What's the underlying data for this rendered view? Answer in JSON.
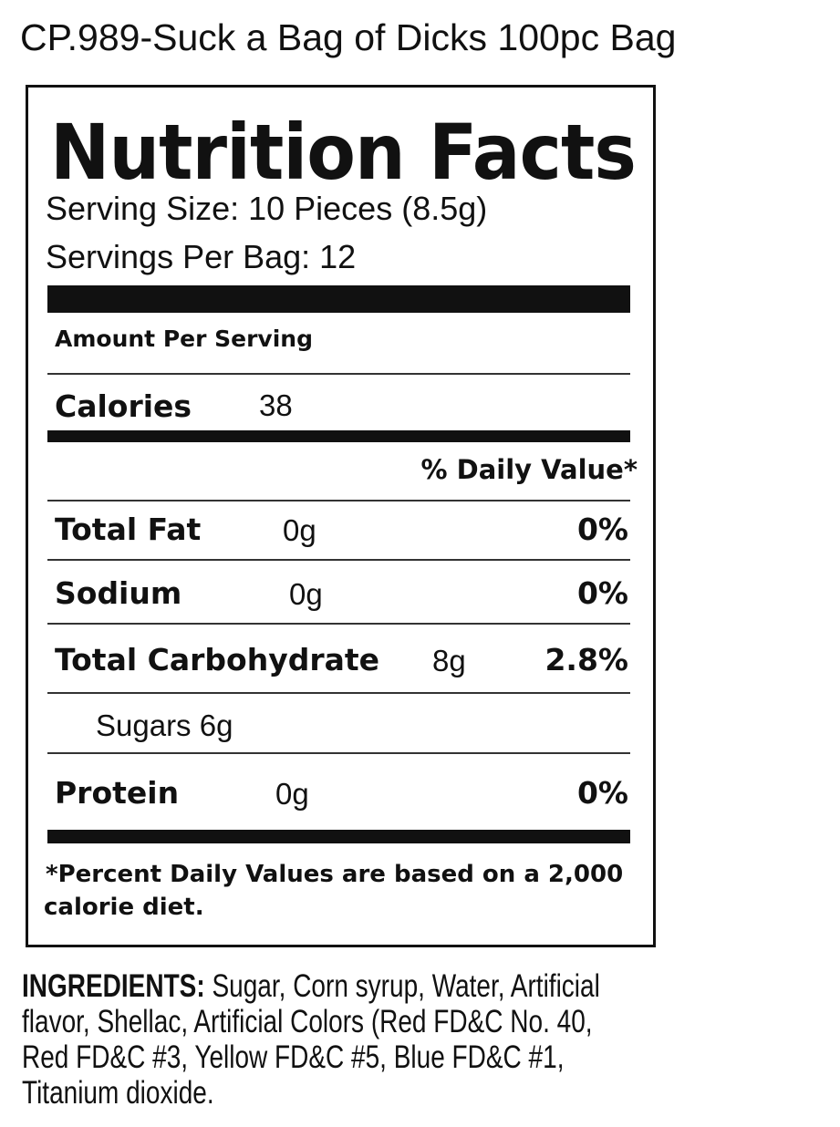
{
  "title": "CP.989-Suck a Bag of Dicks 100pc Bag",
  "label": {
    "heading": "Nutrition Facts",
    "serving_size": "Serving Size: 10 Pieces (8.5g)",
    "servings_per_bag": "Servings Per Bag: 12",
    "amount_per_serving": "Amount Per Serving",
    "calories_label": "Calories",
    "calories_value": "38",
    "daily_value_header": "% Daily Value*",
    "nutrients": [
      {
        "name": "Total Fat",
        "amount": "0g",
        "dv": "0%"
      },
      {
        "name": "Sodium",
        "amount": "0g",
        "dv": "0%"
      },
      {
        "name": "Total Carbohydrate",
        "amount": "8g",
        "dv": "2.8%"
      },
      {
        "name": "Sugars 6g"
      },
      {
        "name": "Protein",
        "amount": "0g",
        "dv": "0%"
      }
    ],
    "footnote_line1": "*Percent Daily Values are based on a 2,000",
    "footnote_line2": "calorie diet."
  },
  "ingredients": {
    "heading": "INGREDIENTS:",
    "lines": [
      " Sugar, Corn syrup, Water, Artificial",
      "flavor, Shellac, Artificial Colors (Red FD&C No. 40,",
      "Red FD&C #3, Yellow FD&C #5, Blue FD&C #1,",
      "Titanium dioxide."
    ]
  }
}
